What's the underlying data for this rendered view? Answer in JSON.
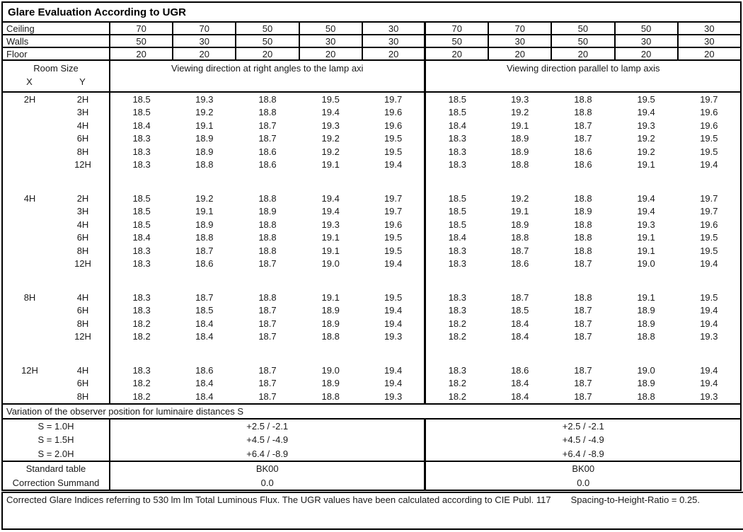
{
  "title": "Glare Evaluation According to UGR",
  "colors": {
    "border": "#000000",
    "text": "#1a1a1a",
    "background": "#ffffff"
  },
  "header": {
    "room_size_label": "Room Size",
    "x_label": "X",
    "y_label": "Y",
    "left_direction": "Viewing direction at right angles to the lamp axi",
    "right_direction": "Viewing direction parallel to lamp axis"
  },
  "surfaces": {
    "rows": [
      {
        "label": "Ceiling",
        "values": [
          "70",
          "70",
          "50",
          "50",
          "30",
          "70",
          "70",
          "50",
          "50",
          "30"
        ]
      },
      {
        "label": "Walls",
        "values": [
          "50",
          "30",
          "50",
          "30",
          "30",
          "50",
          "30",
          "50",
          "30",
          "30"
        ]
      },
      {
        "label": "Floor",
        "values": [
          "20",
          "20",
          "20",
          "20",
          "20",
          "20",
          "20",
          "20",
          "20",
          "20"
        ]
      }
    ]
  },
  "ugr_blocks": [
    {
      "x": "2H",
      "rows": [
        {
          "y": "2H",
          "left": [
            "18.5",
            "19.3",
            "18.8",
            "19.5",
            "19.7"
          ],
          "right": [
            "18.5",
            "19.3",
            "18.8",
            "19.5",
            "19.7"
          ]
        },
        {
          "y": "3H",
          "left": [
            "18.5",
            "19.2",
            "18.8",
            "19.4",
            "19.6"
          ],
          "right": [
            "18.5",
            "19.2",
            "18.8",
            "19.4",
            "19.6"
          ]
        },
        {
          "y": "4H",
          "left": [
            "18.4",
            "19.1",
            "18.7",
            "19.3",
            "19.6"
          ],
          "right": [
            "18.4",
            "19.1",
            "18.7",
            "19.3",
            "19.6"
          ]
        },
        {
          "y": "6H",
          "left": [
            "18.3",
            "18.9",
            "18.7",
            "19.2",
            "19.5"
          ],
          "right": [
            "18.3",
            "18.9",
            "18.7",
            "19.2",
            "19.5"
          ]
        },
        {
          "y": "8H",
          "left": [
            "18.3",
            "18.9",
            "18.6",
            "19.2",
            "19.5"
          ],
          "right": [
            "18.3",
            "18.9",
            "18.6",
            "19.2",
            "19.5"
          ]
        },
        {
          "y": "12H",
          "left": [
            "18.3",
            "18.8",
            "18.6",
            "19.1",
            "19.4"
          ],
          "right": [
            "18.3",
            "18.8",
            "18.6",
            "19.1",
            "19.4"
          ]
        }
      ]
    },
    {
      "x": "4H",
      "rows": [
        {
          "y": "2H",
          "left": [
            "18.5",
            "19.2",
            "18.8",
            "19.4",
            "19.7"
          ],
          "right": [
            "18.5",
            "19.2",
            "18.8",
            "19.4",
            "19.7"
          ]
        },
        {
          "y": "3H",
          "left": [
            "18.5",
            "19.1",
            "18.9",
            "19.4",
            "19.7"
          ],
          "right": [
            "18.5",
            "19.1",
            "18.9",
            "19.4",
            "19.7"
          ]
        },
        {
          "y": "4H",
          "left": [
            "18.5",
            "18.9",
            "18.8",
            "19.3",
            "19.6"
          ],
          "right": [
            "18.5",
            "18.9",
            "18.8",
            "19.3",
            "19.6"
          ]
        },
        {
          "y": "6H",
          "left": [
            "18.4",
            "18.8",
            "18.8",
            "19.1",
            "19.5"
          ],
          "right": [
            "18.4",
            "18.8",
            "18.8",
            "19.1",
            "19.5"
          ]
        },
        {
          "y": "8H",
          "left": [
            "18.3",
            "18.7",
            "18.8",
            "19.1",
            "19.5"
          ],
          "right": [
            "18.3",
            "18.7",
            "18.8",
            "19.1",
            "19.5"
          ]
        },
        {
          "y": "12H",
          "left": [
            "18.3",
            "18.6",
            "18.7",
            "19.0",
            "19.4"
          ],
          "right": [
            "18.3",
            "18.6",
            "18.7",
            "19.0",
            "19.4"
          ]
        }
      ]
    },
    {
      "x": "8H",
      "rows": [
        {
          "y": "4H",
          "left": [
            "18.3",
            "18.7",
            "18.8",
            "19.1",
            "19.5"
          ],
          "right": [
            "18.3",
            "18.7",
            "18.8",
            "19.1",
            "19.5"
          ]
        },
        {
          "y": "6H",
          "left": [
            "18.3",
            "18.5",
            "18.7",
            "18.9",
            "19.4"
          ],
          "right": [
            "18.3",
            "18.5",
            "18.7",
            "18.9",
            "19.4"
          ]
        },
        {
          "y": "8H",
          "left": [
            "18.2",
            "18.4",
            "18.7",
            "18.9",
            "19.4"
          ],
          "right": [
            "18.2",
            "18.4",
            "18.7",
            "18.9",
            "19.4"
          ]
        },
        {
          "y": "12H",
          "left": [
            "18.2",
            "18.4",
            "18.7",
            "18.8",
            "19.3"
          ],
          "right": [
            "18.2",
            "18.4",
            "18.7",
            "18.8",
            "19.3"
          ]
        }
      ]
    },
    {
      "x": "12H",
      "rows": [
        {
          "y": "4H",
          "left": [
            "18.3",
            "18.6",
            "18.7",
            "19.0",
            "19.4"
          ],
          "right": [
            "18.3",
            "18.6",
            "18.7",
            "19.0",
            "19.4"
          ]
        },
        {
          "y": "6H",
          "left": [
            "18.2",
            "18.4",
            "18.7",
            "18.9",
            "19.4"
          ],
          "right": [
            "18.2",
            "18.4",
            "18.7",
            "18.9",
            "19.4"
          ]
        },
        {
          "y": "8H",
          "left": [
            "18.2",
            "18.4",
            "18.7",
            "18.8",
            "19.3"
          ],
          "right": [
            "18.2",
            "18.4",
            "18.7",
            "18.8",
            "19.3"
          ]
        }
      ]
    }
  ],
  "variation": {
    "title": "Variation of the observer position for luminaire distances S",
    "rows": [
      {
        "label": "S = 1.0H",
        "left": "+2.5 / -2.1",
        "right": "+2.5 / -2.1"
      },
      {
        "label": "S = 1.5H",
        "left": "+4.5 / -4.9",
        "right": "+4.5 / -4.9"
      },
      {
        "label": "S = 2.0H",
        "left": "+6.4 / -8.9",
        "right": "+6.4 / -8.9"
      }
    ]
  },
  "summary": {
    "rows": [
      {
        "label": "Standard table",
        "left": "BK00",
        "right": "BK00"
      },
      {
        "label": "Correction Summand",
        "left": "0.0",
        "right": "0.0"
      }
    ]
  },
  "footer": {
    "note": "Corrected Glare Indices referring to 530 lm lm Total Luminous Flux. The UGR values have been calculated according to CIE Publ. 117",
    "ratio": "Spacing-to-Height-Ratio = 0.25."
  }
}
